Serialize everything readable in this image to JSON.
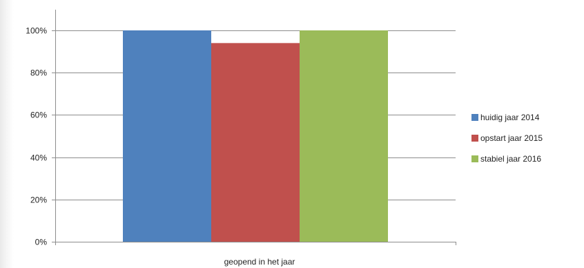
{
  "chart_data": {
    "type": "bar",
    "categories": [
      "geopend in het jaar"
    ],
    "series": [
      {
        "name": "huidig jaar 2014",
        "values": [
          100
        ],
        "color": "#4f81bd"
      },
      {
        "name": "opstart jaar 2015",
        "values": [
          94
        ],
        "color": "#c0504d"
      },
      {
        "name": "stabiel jaar 2016",
        "values": [
          100
        ],
        "color": "#9bbb59"
      }
    ],
    "yticks": [
      "0%",
      "20%",
      "40%",
      "60%",
      "80%",
      "100%"
    ],
    "ylim": [
      0,
      100
    ],
    "grid": true,
    "legend": "right",
    "colors": {
      "grid": "#8c8c8c",
      "axis": "#8c8c8c",
      "text": "#222222"
    }
  }
}
